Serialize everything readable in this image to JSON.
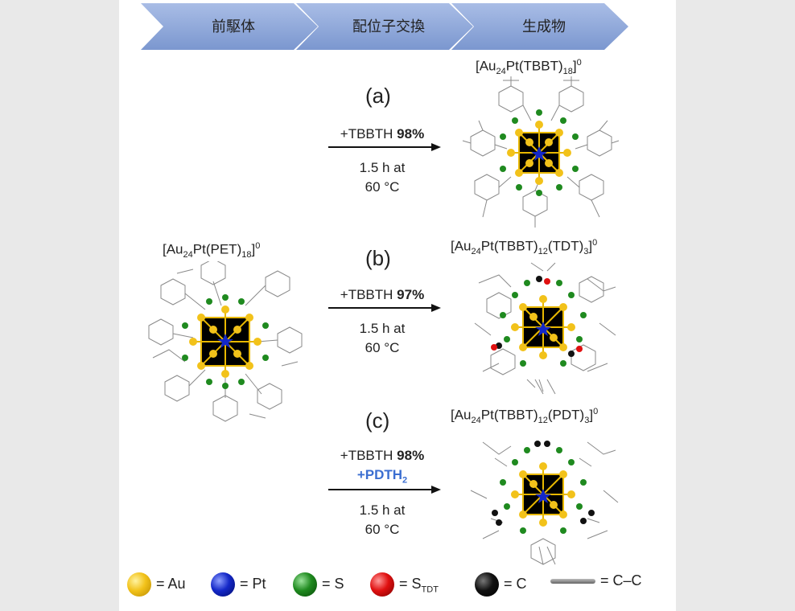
{
  "header": {
    "step1": "前駆体",
    "step2": "配位子交換",
    "step3": "生成物"
  },
  "precursor": {
    "formula_main": "[Au",
    "sub1": "24",
    "mid": "Pt(PET)",
    "sub2": "18",
    "close": "]",
    "sup": "0"
  },
  "reactions": [
    {
      "label": "(a)",
      "reagent": "+TBBTH",
      "yield": "98%",
      "extra_reagent": "",
      "time": "1.5 h at",
      "temp": "60 °C",
      "product": {
        "a": "[Au",
        "s1": "24",
        "b": "Pt(TBBT)",
        "s2": "18",
        "c": "]",
        "sup": "0",
        "d": "",
        "s3": "",
        "e": ""
      }
    },
    {
      "label": "(b)",
      "reagent": "+TBBTH",
      "yield": "97%",
      "extra_reagent": "",
      "time": "1.5 h at",
      "temp": "60 °C",
      "product": {
        "a": "[Au",
        "s1": "24",
        "b": "Pt(TBBT)",
        "s2": "12",
        "c": "(TDT)",
        "s3": "3",
        "e": "]",
        "sup": "0"
      }
    },
    {
      "label": "(c)",
      "reagent": "+TBBTH",
      "yield": "98%",
      "extra_reagent": "+PDTH",
      "extra_sub": "2",
      "time": "1.5 h at",
      "temp": "60 °C",
      "product": {
        "a": "[Au",
        "s1": "24",
        "b": "Pt(TBBT)",
        "s2": "12",
        "c": "(PDT)",
        "s3": "3",
        "e": "]",
        "sup": "0"
      }
    }
  ],
  "legend": {
    "au": "= Au",
    "pt": "= Pt",
    "s": "= S",
    "stdt": "= S",
    "stdt_sub": "TDT",
    "c": "= C",
    "cc": "= C–C"
  },
  "colors": {
    "chevron": "#8fa9d8",
    "gold": "#f2c21a",
    "blue": "#1428c8",
    "green": "#1f8a1f",
    "red": "#e01010",
    "black": "#111111",
    "accent_text": "#3b6ed1"
  }
}
